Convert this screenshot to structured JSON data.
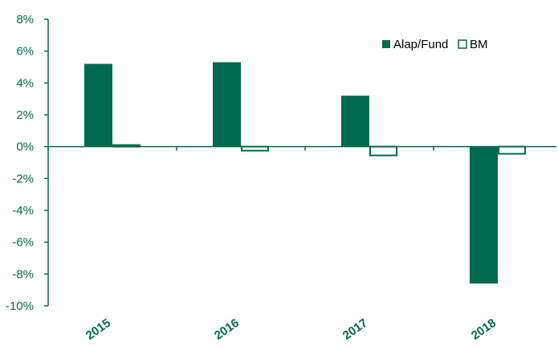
{
  "chart_data": {
    "type": "bar",
    "title": "",
    "xlabel": "",
    "ylabel": "",
    "categories": [
      "2015",
      "2016",
      "2017",
      "2018"
    ],
    "series": [
      {
        "name": "Alap/Fund",
        "values": [
          5.2,
          5.3,
          3.2,
          -8.6
        ],
        "color": "#006a4e",
        "style": "filled"
      },
      {
        "name": "BM",
        "values": [
          0.1,
          -0.25,
          -0.55,
          -0.45
        ],
        "color": "#006a4e",
        "style": "outline"
      }
    ],
    "ylim": [
      -10,
      8
    ],
    "ytick_values": [
      8,
      6,
      4,
      2,
      0,
      -2,
      -4,
      -6,
      -8,
      -10
    ],
    "ytick_labels": [
      "8%",
      "6%",
      "4%",
      "2%",
      "0%",
      "-2%",
      "-4%",
      "-6%",
      "-8%",
      "-10%"
    ],
    "grid": false,
    "legend_position": "top-right",
    "axis_color": "#006a4e"
  }
}
